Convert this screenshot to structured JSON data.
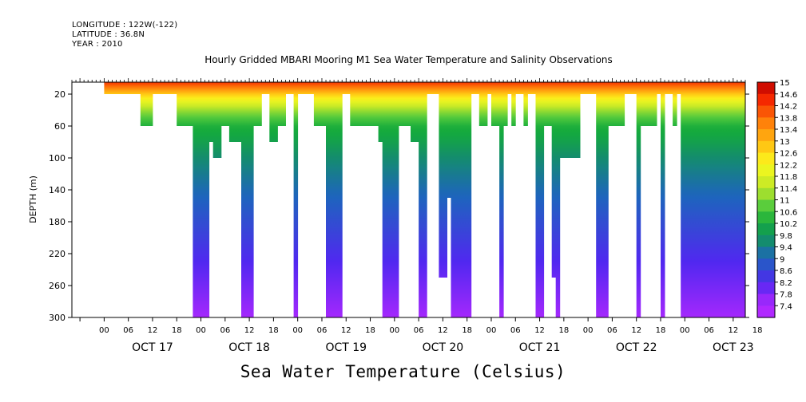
{
  "header": {
    "longitude": "LONGITUDE : 122W(-122)",
    "latitude": "LATITUDE : 36.8N",
    "year": "YEAR : 2010"
  },
  "footer": {
    "label": "Sea Water Temperature (Celsius)"
  },
  "chart_data": {
    "type": "heatmap",
    "title": "Hourly Gridded MBARI Mooring M1 Sea Water Temperature and Salinity Observations",
    "xlabel": "",
    "ylabel": "DEPTH (m)",
    "ylim": [
      300,
      5
    ],
    "y_ticks": [
      20,
      60,
      100,
      140,
      180,
      220,
      260,
      300
    ],
    "x_hour_ticks": [
      "00",
      "06",
      "12",
      "18",
      "00",
      "06",
      "12",
      "18",
      "00",
      "06",
      "12",
      "18",
      "00",
      "06",
      "12",
      "18",
      "00",
      "06",
      "12",
      "18",
      "00",
      "06",
      "12",
      "18",
      "00",
      "06",
      "12",
      "18"
    ],
    "x_day_labels": [
      "OCT 17",
      "OCT 18",
      "OCT 19",
      "OCT 20",
      "OCT 21",
      "OCT 22",
      "OCT 23"
    ],
    "x_range_hours": [
      -8,
      159
    ],
    "colorbar": {
      "ticks": [
        "15",
        "14.6",
        "14.2",
        "13.8",
        "13.4",
        "13",
        "12.6",
        "12.2",
        "11.8",
        "11.4",
        "11",
        "10.6",
        "10.2",
        "9.8",
        "9.4",
        "9",
        "8.6",
        "8.2",
        "7.8",
        "7.4"
      ]
    },
    "depth_profile": {
      "depths": [
        5,
        10,
        20,
        30,
        40,
        50,
        60,
        80,
        100,
        140,
        180,
        220,
        260,
        300
      ],
      "temps": [
        14.3,
        13.8,
        12.8,
        11.9,
        11.2,
        10.7,
        10.3,
        10.0,
        9.6,
        9.1,
        8.7,
        8.3,
        7.9,
        7.5
      ]
    },
    "coverage": [
      {
        "hours": [
          0,
          9
        ],
        "max_depth": 20
      },
      {
        "hours": [
          9,
          12
        ],
        "max_depth": 60
      },
      {
        "hours": [
          12,
          16
        ],
        "max_depth": 20
      },
      {
        "hours": [
          16,
          18
        ],
        "max_depth": 20
      },
      {
        "hours": [
          18,
          22
        ],
        "max_depth": 60
      },
      {
        "hours": [
          22,
          24
        ],
        "max_depth": 300
      },
      {
        "hours": [
          24,
          26
        ],
        "max_depth": 300
      },
      {
        "hours": [
          26,
          27
        ],
        "max_depth": 80
      },
      {
        "hours": [
          27,
          29
        ],
        "max_depth": 100
      },
      {
        "hours": [
          29,
          31
        ],
        "max_depth": 60
      },
      {
        "hours": [
          31,
          34
        ],
        "max_depth": 80
      },
      {
        "hours": [
          34,
          37
        ],
        "max_depth": 300
      },
      {
        "hours": [
          37,
          39
        ],
        "max_depth": 60
      },
      {
        "hours": [
          39,
          41
        ],
        "max_depth": 20
      },
      {
        "hours": [
          41,
          43
        ],
        "max_depth": 80
      },
      {
        "hours": [
          43,
          45
        ],
        "max_depth": 60
      },
      {
        "hours": [
          45,
          47
        ],
        "max_depth": 20
      },
      {
        "hours": [
          47,
          48
        ],
        "max_depth": 300
      },
      {
        "hours": [
          48,
          52
        ],
        "max_depth": 20
      },
      {
        "hours": [
          52,
          55
        ],
        "max_depth": 60
      },
      {
        "hours": [
          55,
          58
        ],
        "max_depth": 300
      },
      {
        "hours": [
          58,
          59
        ],
        "max_depth": 300
      },
      {
        "hours": [
          59,
          61
        ],
        "max_depth": 20
      },
      {
        "hours": [
          61,
          68
        ],
        "max_depth": 60
      },
      {
        "hours": [
          68,
          69
        ],
        "max_depth": 80
      },
      {
        "hours": [
          69,
          71
        ],
        "max_depth": 300
      },
      {
        "hours": [
          71,
          73
        ],
        "max_depth": 300
      },
      {
        "hours": [
          73,
          76
        ],
        "max_depth": 60
      },
      {
        "hours": [
          76,
          78
        ],
        "max_depth": 80
      },
      {
        "hours": [
          78,
          80
        ],
        "max_depth": 300
      },
      {
        "hours": [
          80,
          83
        ],
        "max_depth": 20
      },
      {
        "hours": [
          83,
          85
        ],
        "max_depth": 250
      },
      {
        "hours": [
          85,
          86
        ],
        "max_depth": 150
      },
      {
        "hours": [
          86,
          91
        ],
        "max_depth": 300
      },
      {
        "hours": [
          91,
          93
        ],
        "max_depth": 20
      },
      {
        "hours": [
          93,
          95
        ],
        "max_depth": 60
      },
      {
        "hours": [
          95,
          96
        ],
        "max_depth": 20
      },
      {
        "hours": [
          96,
          98
        ],
        "max_depth": 60
      },
      {
        "hours": [
          98,
          99
        ],
        "max_depth": 300
      },
      {
        "hours": [
          99,
          100
        ],
        "max_depth": 60
      },
      {
        "hours": [
          100,
          101
        ],
        "max_depth": 20
      },
      {
        "hours": [
          101,
          102
        ],
        "max_depth": 60
      },
      {
        "hours": [
          102,
          104
        ],
        "max_depth": 20
      },
      {
        "hours": [
          104,
          105
        ],
        "max_depth": 60
      },
      {
        "hours": [
          105,
          107
        ],
        "max_depth": 20
      },
      {
        "hours": [
          107,
          109
        ],
        "max_depth": 300
      },
      {
        "hours": [
          109,
          111
        ],
        "max_depth": 60
      },
      {
        "hours": [
          111,
          112
        ],
        "max_depth": 250
      },
      {
        "hours": [
          112,
          113
        ],
        "max_depth": 300
      },
      {
        "hours": [
          113,
          118
        ],
        "max_depth": 100
      },
      {
        "hours": [
          118,
          122
        ],
        "max_depth": 20
      },
      {
        "hours": [
          122,
          125
        ],
        "max_depth": 300
      },
      {
        "hours": [
          125,
          129
        ],
        "max_depth": 60
      },
      {
        "hours": [
          129,
          132
        ],
        "max_depth": 20
      },
      {
        "hours": [
          132,
          133
        ],
        "max_depth": 300
      },
      {
        "hours": [
          133,
          137
        ],
        "max_depth": 60
      },
      {
        "hours": [
          137,
          138
        ],
        "max_depth": 20
      },
      {
        "hours": [
          138,
          139
        ],
        "max_depth": 300
      },
      {
        "hours": [
          139,
          141
        ],
        "max_depth": 20
      },
      {
        "hours": [
          141,
          142
        ],
        "max_depth": 60
      },
      {
        "hours": [
          142,
          143
        ],
        "max_depth": 20
      },
      {
        "hours": [
          143,
          153
        ],
        "max_depth": 300
      },
      {
        "hours": [
          153,
          159
        ],
        "max_depth": 300
      }
    ]
  }
}
